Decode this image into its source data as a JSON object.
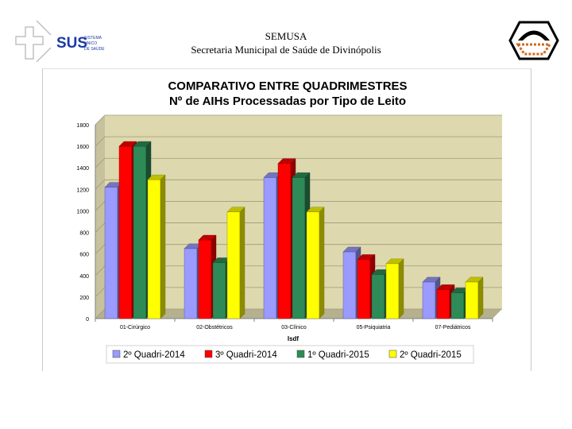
{
  "header": {
    "org": "SEMUSA",
    "subtitle": "Secretaria Municipal de Saúde de Divinópolis",
    "logo_text": "SUS",
    "logo_small": [
      "SISTEMA",
      "ÚNICO",
      "DE SAÚDE"
    ]
  },
  "colors": {
    "series": [
      "#9a9aff",
      "#ff0000",
      "#2e8b57",
      "#ffff00"
    ],
    "wall": "#ddd8ae",
    "logo_blue": "#1a3aa8",
    "emblem": "#d2691e"
  },
  "chart_data": {
    "type": "bar",
    "title_line1": "COMPARATIVO ENTRE QUADRIMESTRES",
    "title_line2": "Nº de AIHs Processadas por Tipo de Leito",
    "xlabel": "Isdf",
    "ylabel": "",
    "ylim": [
      0,
      1800
    ],
    "yticks": [
      0,
      200,
      400,
      600,
      800,
      1000,
      1200,
      1400,
      1600,
      1800
    ],
    "grid": true,
    "legend_position": "bottom",
    "categories": [
      "01-Cirúrgico",
      "02-Obstétricos",
      "03-Clínico",
      "05-Psiquiatria",
      "07-Pediátricos"
    ],
    "series": [
      {
        "name": "2º Quadri-2014",
        "values": [
          1220,
          650,
          1310,
          620,
          340
        ]
      },
      {
        "name": "3º Quadri-2014",
        "values": [
          1600,
          730,
          1440,
          550,
          270
        ]
      },
      {
        "name": "1º Quadri-2015",
        "values": [
          1600,
          520,
          1310,
          410,
          240
        ]
      },
      {
        "name": "2º Quadri-2015",
        "values": [
          1290,
          990,
          990,
          510,
          340
        ]
      }
    ]
  }
}
